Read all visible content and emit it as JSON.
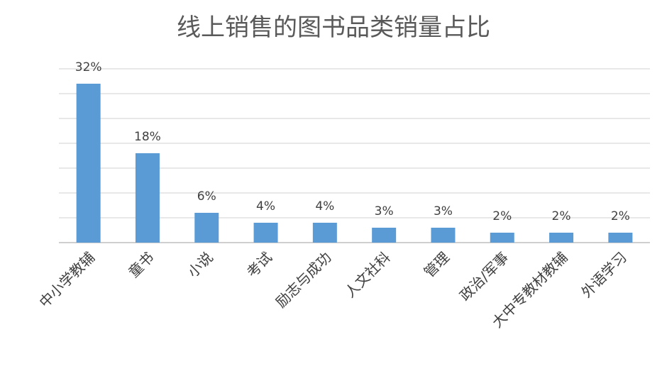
{
  "chart_data": {
    "type": "bar",
    "title": "线上销售的图书品类销量占比",
    "categories": [
      "中小学教辅",
      "童书",
      "小说",
      "考试",
      "励志与成功",
      "人文社科",
      "管理",
      "政治/军事",
      "大中专教材教辅",
      "外语学习"
    ],
    "values": [
      32,
      18,
      6,
      4,
      4,
      3,
      3,
      2,
      2,
      2
    ],
    "data_labels": [
      "32%",
      "18%",
      "6%",
      "4%",
      "4%",
      "3%",
      "3%",
      "2%",
      "2%",
      "2%"
    ],
    "unit": "%",
    "ylim": [
      0,
      35
    ],
    "grid": true,
    "legend": "none",
    "bar_color": "#5b9bd5"
  }
}
